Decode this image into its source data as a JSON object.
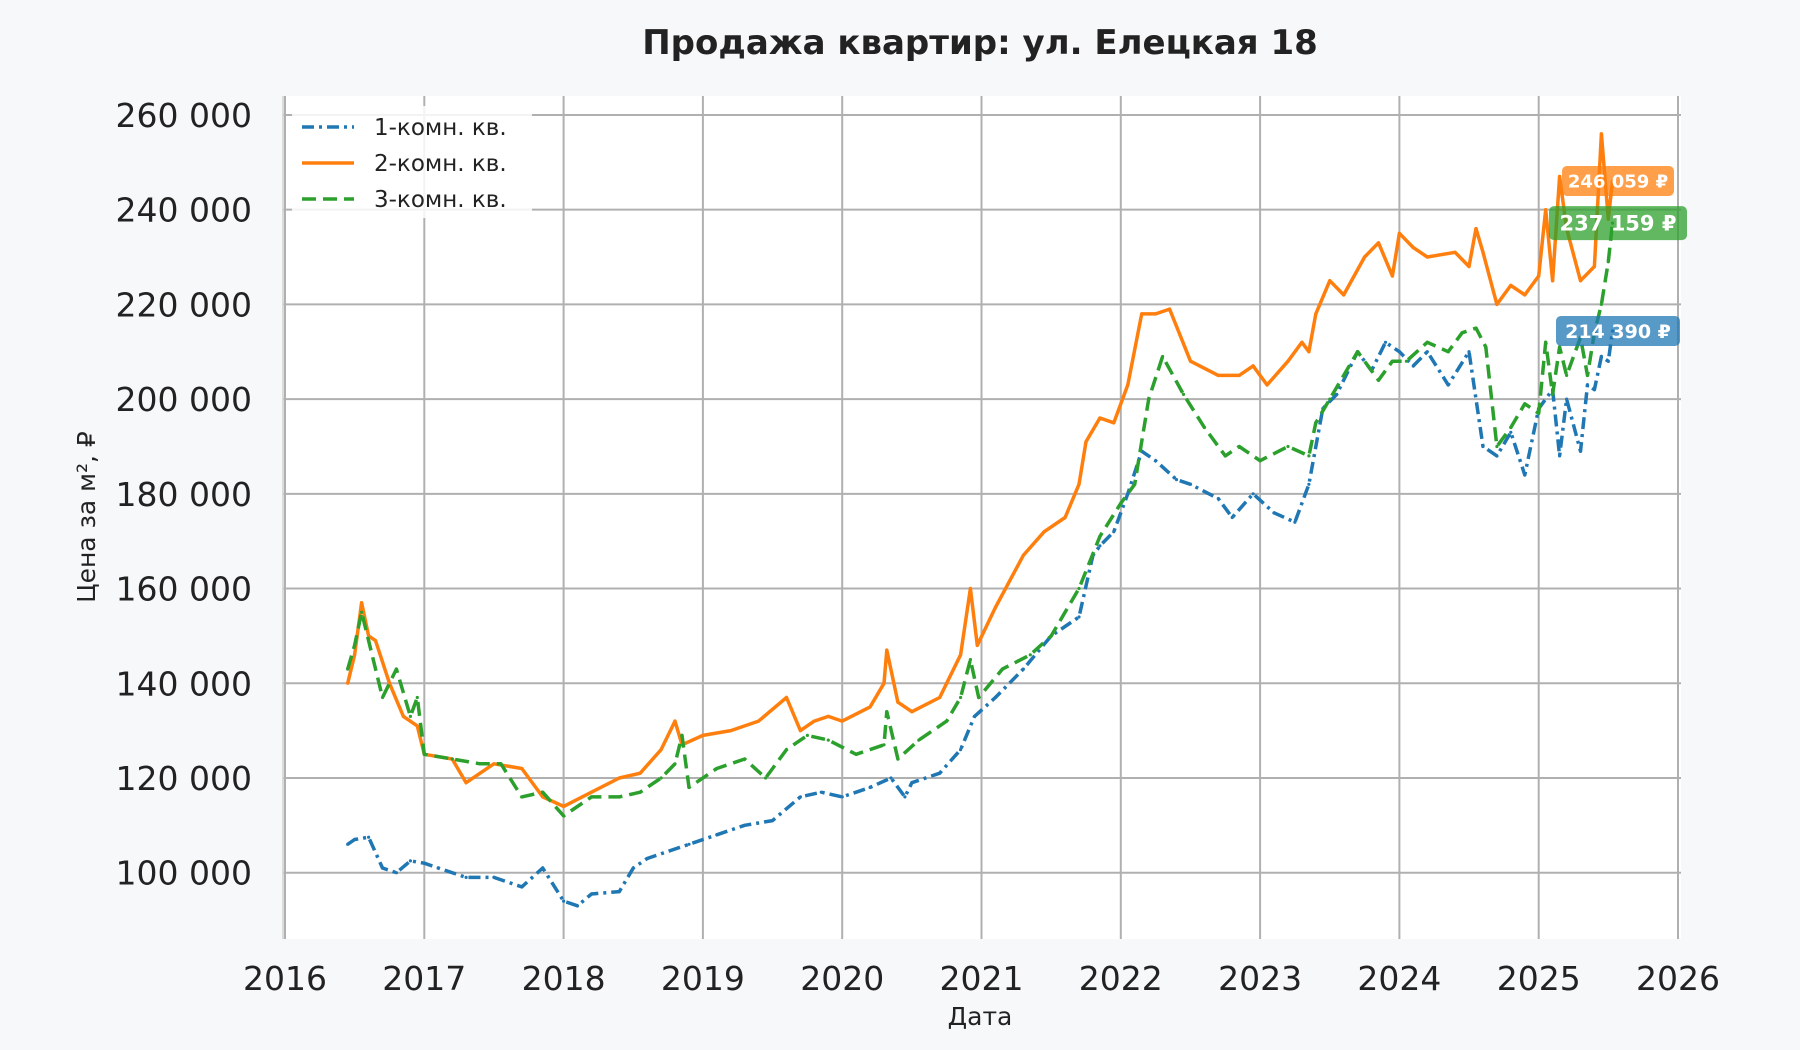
{
  "chart_data": {
    "type": "line",
    "title": "Продажа квартир: ул. Елецкая 18",
    "xlabel": "Дата",
    "ylabel": "Цена за м², ₽",
    "xlim": [
      2016.0,
      2026.0
    ],
    "ylim": [
      86000,
      264000
    ],
    "grid": true,
    "legend_position": "top-left",
    "x_ticks": [
      2016,
      2017,
      2018,
      2019,
      2020,
      2021,
      2022,
      2023,
      2024,
      2025,
      2026
    ],
    "x_tick_labels": [
      "2016",
      "2017",
      "2018",
      "2019",
      "2020",
      "2021",
      "2022",
      "2023",
      "2024",
      "2025",
      "2026"
    ],
    "y_ticks": [
      100000,
      120000,
      140000,
      160000,
      180000,
      200000,
      220000,
      240000,
      260000
    ],
    "y_tick_labels": [
      "100 000",
      "120 000",
      "140 000",
      "160 000",
      "180 000",
      "200 000",
      "220 000",
      "240 000",
      "260 000"
    ],
    "series": [
      {
        "name": "1-комн. кв.",
        "color": "#1f77b4",
        "style": "dash-dot",
        "x": [
          2016.45,
          2016.5,
          2016.6,
          2016.7,
          2016.8,
          2016.9,
          2017.0,
          2017.1,
          2017.3,
          2017.5,
          2017.7,
          2017.85,
          2018.0,
          2018.1,
          2018.2,
          2018.4,
          2018.5,
          2018.6,
          2018.8,
          2018.9,
          2019.1,
          2019.3,
          2019.5,
          2019.7,
          2019.85,
          2020.0,
          2020.2,
          2020.35,
          2020.45,
          2020.5,
          2020.7,
          2020.85,
          2020.95,
          2021.1,
          2021.3,
          2021.5,
          2021.7,
          2021.8,
          2021.85,
          2021.95,
          2022.05,
          2022.15,
          2022.25,
          2022.4,
          2022.5,
          2022.7,
          2022.8,
          2022.95,
          2023.1,
          2023.25,
          2023.35,
          2023.45,
          2023.55,
          2023.7,
          2023.8,
          2023.9,
          2024.0,
          2024.1,
          2024.2,
          2024.35,
          2024.5,
          2024.6,
          2024.7,
          2024.8,
          2024.9,
          2025.0,
          2025.1,
          2025.15,
          2025.2,
          2025.3,
          2025.35,
          2025.4,
          2025.45,
          2025.5,
          2025.53
        ],
        "y": [
          106000,
          107000,
          107500,
          101000,
          100000,
          102500,
          102000,
          101000,
          99000,
          99000,
          97000,
          101000,
          94000,
          93000,
          95500,
          96000,
          101000,
          103000,
          105000,
          106000,
          108000,
          110000,
          111000,
          116000,
          117000,
          116000,
          118000,
          120000,
          116000,
          119000,
          121000,
          126000,
          133000,
          137000,
          143000,
          150000,
          154000,
          167000,
          169000,
          172000,
          180000,
          189000,
          187000,
          183000,
          182000,
          179000,
          175000,
          180000,
          176000,
          174000,
          182000,
          198000,
          201000,
          210000,
          206000,
          212000,
          210000,
          207000,
          210000,
          203000,
          210000,
          190000,
          188000,
          193000,
          184000,
          198000,
          202000,
          188000,
          200000,
          189000,
          203000,
          202000,
          209000,
          208000,
          214390
        ]
      },
      {
        "name": "2-комн. кв.",
        "color": "#ff7f0e",
        "style": "solid",
        "x": [
          2016.45,
          2016.5,
          2016.55,
          2016.6,
          2016.65,
          2016.75,
          2016.85,
          2016.95,
          2017.0,
          2017.2,
          2017.3,
          2017.5,
          2017.7,
          2017.85,
          2018.0,
          2018.2,
          2018.4,
          2018.55,
          2018.7,
          2018.8,
          2018.85,
          2019.0,
          2019.2,
          2019.4,
          2019.6,
          2019.7,
          2019.8,
          2019.9,
          2020.0,
          2020.2,
          2020.3,
          2020.32,
          2020.4,
          2020.5,
          2020.7,
          2020.85,
          2020.92,
          2020.97,
          2021.1,
          2021.3,
          2021.45,
          2021.6,
          2021.7,
          2021.75,
          2021.85,
          2021.95,
          2022.05,
          2022.15,
          2022.25,
          2022.35,
          2022.5,
          2022.7,
          2022.85,
          2022.95,
          2023.05,
          2023.2,
          2023.3,
          2023.35,
          2023.4,
          2023.5,
          2023.6,
          2023.75,
          2023.85,
          2023.95,
          2024.0,
          2024.1,
          2024.2,
          2024.4,
          2024.5,
          2024.55,
          2024.6,
          2024.7,
          2024.8,
          2024.9,
          2025.0,
          2025.05,
          2025.1,
          2025.15,
          2025.2,
          2025.3,
          2025.4,
          2025.45,
          2025.5,
          2025.53
        ],
        "y": [
          140000,
          146000,
          157000,
          150000,
          149000,
          140000,
          133000,
          131000,
          125000,
          124000,
          119000,
          123000,
          122000,
          116000,
          114000,
          117000,
          120000,
          121000,
          126000,
          132000,
          127000,
          129000,
          130000,
          132000,
          137000,
          130000,
          132000,
          133000,
          132000,
          135000,
          140000,
          147000,
          136000,
          134000,
          137000,
          146000,
          160000,
          148000,
          156000,
          167000,
          172000,
          175000,
          182000,
          191000,
          196000,
          195000,
          203000,
          218000,
          218000,
          219000,
          208000,
          205000,
          205000,
          207000,
          203000,
          208000,
          212000,
          210000,
          218000,
          225000,
          222000,
          230000,
          233000,
          226000,
          235000,
          232000,
          230000,
          231000,
          228000,
          236000,
          231000,
          220000,
          224000,
          222000,
          226000,
          240000,
          225000,
          247000,
          236000,
          225000,
          228000,
          256000,
          238000,
          246059
        ]
      },
      {
        "name": "3-комн. кв.",
        "color": "#2ca02c",
        "style": "dashed",
        "x": [
          2016.45,
          2016.5,
          2016.55,
          2016.6,
          2016.7,
          2016.8,
          2016.9,
          2016.95,
          2017.0,
          2017.2,
          2017.4,
          2017.55,
          2017.7,
          2017.85,
          2018.0,
          2018.2,
          2018.4,
          2018.55,
          2018.7,
          2018.8,
          2018.85,
          2018.9,
          2019.1,
          2019.3,
          2019.45,
          2019.6,
          2019.75,
          2019.9,
          2020.1,
          2020.3,
          2020.32,
          2020.4,
          2020.55,
          2020.75,
          2020.85,
          2020.92,
          2020.98,
          2021.15,
          2021.35,
          2021.5,
          2021.7,
          2021.85,
          2022.0,
          2022.1,
          2022.2,
          2022.3,
          2022.45,
          2022.6,
          2022.75,
          2022.85,
          2023.0,
          2023.2,
          2023.35,
          2023.4,
          2023.5,
          2023.7,
          2023.85,
          2023.95,
          2024.05,
          2024.2,
          2024.35,
          2024.45,
          2024.55,
          2024.62,
          2024.7,
          2024.8,
          2024.9,
          2025.0,
          2025.05,
          2025.1,
          2025.15,
          2025.2,
          2025.3,
          2025.35,
          2025.4,
          2025.45,
          2025.5,
          2025.53
        ],
        "y": [
          143000,
          148000,
          155000,
          149000,
          137000,
          143000,
          133000,
          137000,
          125000,
          124000,
          123000,
          123000,
          116000,
          117000,
          112000,
          116000,
          116000,
          117000,
          120000,
          123000,
          129000,
          118000,
          122000,
          124000,
          120000,
          126000,
          129000,
          128000,
          125000,
          127000,
          134000,
          124000,
          128000,
          132000,
          137000,
          145000,
          137000,
          143000,
          146000,
          150000,
          160000,
          171000,
          178000,
          182000,
          200000,
          209000,
          201000,
          194000,
          188000,
          190000,
          187000,
          190000,
          188000,
          195000,
          200000,
          210000,
          204000,
          208000,
          208000,
          212000,
          210000,
          214000,
          215000,
          211000,
          190000,
          194000,
          199000,
          197000,
          212000,
          201000,
          211000,
          205000,
          213000,
          205000,
          214000,
          220000,
          229000,
          237159
        ]
      }
    ],
    "annotations": [
      {
        "text": "246 059 ₽",
        "series": "2-комн. кв.",
        "value": 246059,
        "color": "#ff7f0e"
      },
      {
        "text": "237 159 ₽",
        "series": "3-комн. кв.",
        "value": 237159,
        "color": "#2ca02c"
      },
      {
        "text": "214 390 ₽",
        "series": "1-комн. кв.",
        "value": 214390,
        "color": "#1f77b4"
      }
    ]
  }
}
